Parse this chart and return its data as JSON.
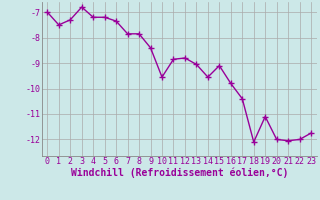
{
  "x": [
    0,
    1,
    2,
    3,
    4,
    5,
    6,
    7,
    8,
    9,
    10,
    11,
    12,
    13,
    14,
    15,
    16,
    17,
    18,
    19,
    20,
    21,
    22,
    23
  ],
  "y": [
    -7.0,
    -7.5,
    -7.3,
    -6.8,
    -7.2,
    -7.2,
    -7.35,
    -7.85,
    -7.85,
    -8.4,
    -9.55,
    -8.85,
    -8.8,
    -9.05,
    -9.55,
    -9.1,
    -9.8,
    -10.4,
    -12.1,
    -11.1,
    -12.0,
    -12.05,
    -12.0,
    -11.75
  ],
  "line_color": "#990099",
  "marker": "+",
  "markersize": 4,
  "linewidth": 1.0,
  "bg_color": "#cce8e8",
  "grid_color": "#aaaaaa",
  "label_color": "#990099",
  "xlabel": "Windchill (Refroidissement éolien,°C)",
  "xlabel_fontsize": 7,
  "tick_fontsize": 6,
  "xlim": [
    -0.5,
    23.5
  ],
  "ylim": [
    -12.65,
    -6.6
  ],
  "yticks": [
    -7,
    -8,
    -9,
    -10,
    -11,
    -12
  ],
  "xticks": [
    0,
    1,
    2,
    3,
    4,
    5,
    6,
    7,
    8,
    9,
    10,
    11,
    12,
    13,
    14,
    15,
    16,
    17,
    18,
    19,
    20,
    21,
    22,
    23
  ]
}
